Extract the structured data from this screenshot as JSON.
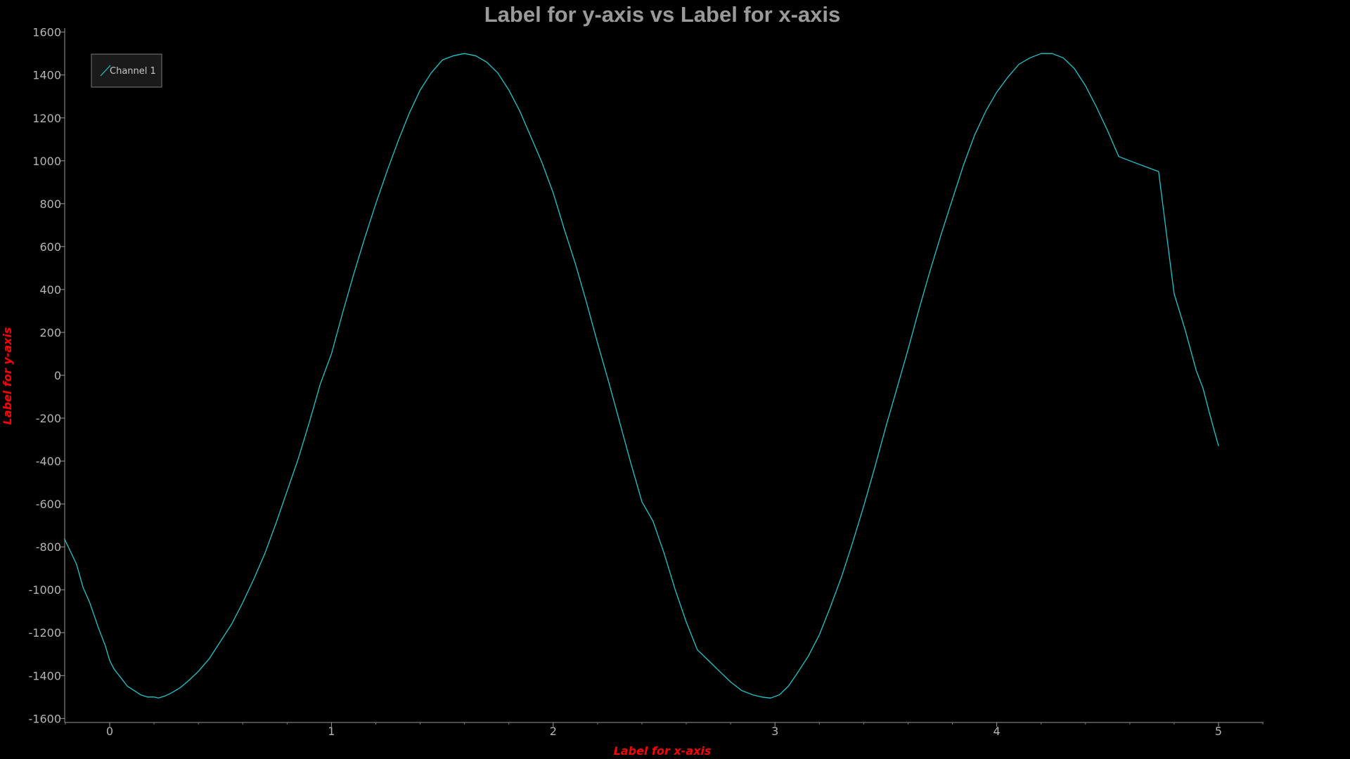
{
  "colors": {
    "background": "#000000",
    "axis": "#9a9a9a",
    "tick_text": "#b4b4b4",
    "title": "#9a9a9a",
    "axis_label": "#ff0000",
    "series": "#1fc6cc",
    "legend_border": "#7a7a7a",
    "legend_fill": "#1a1a1a"
  },
  "chart_data": {
    "type": "line",
    "title": "Label for y-axis vs Label for x-axis",
    "xlabel": "Label for x-axis",
    "ylabel": "Label for y-axis",
    "xlim": [
      -0.205,
      5.2
    ],
    "ylim": [
      -1620,
      1620
    ],
    "xticks": [
      0,
      1,
      2,
      3,
      4,
      5
    ],
    "xtick_labels": [
      "0",
      "1",
      "2",
      "3",
      "4",
      "5"
    ],
    "yticks": [
      1600,
      1400,
      1200,
      1000,
      800,
      600,
      400,
      200,
      0,
      -200,
      -400,
      -600,
      -800,
      -1000,
      -1200,
      -1400,
      -1600
    ],
    "ytick_labels": [
      "1600",
      "1400",
      "1200",
      "1000",
      "800",
      "600",
      "400",
      "200",
      "0",
      "-200",
      "-400",
      "-600",
      "-800",
      "-1000",
      "-1200",
      "-1400",
      "-1600"
    ],
    "grid": false,
    "legend_position": "top-left",
    "series": [
      {
        "name": "Channel 1",
        "color": "#1fc6cc",
        "x": [
          -0.205,
          -0.15,
          -0.12,
          -0.09,
          -0.05,
          -0.02,
          0.0,
          0.02,
          0.05,
          0.08,
          0.11,
          0.14,
          0.17,
          0.2,
          0.22,
          0.25,
          0.28,
          0.32,
          0.36,
          0.4,
          0.45,
          0.5,
          0.55,
          0.6,
          0.65,
          0.7,
          0.75,
          0.8,
          0.85,
          0.9,
          0.95,
          1.0,
          1.05,
          1.1,
          1.15,
          1.2,
          1.25,
          1.3,
          1.35,
          1.4,
          1.45,
          1.5,
          1.55,
          1.6,
          1.65,
          1.7,
          1.75,
          1.8,
          1.85,
          1.9,
          1.95,
          2.0,
          2.05,
          2.1,
          2.15,
          2.2,
          2.25,
          2.3,
          2.35,
          2.4,
          2.45,
          2.5,
          2.55,
          2.6,
          2.65,
          2.7,
          2.72,
          2.75,
          2.8,
          2.85,
          2.9,
          2.94,
          2.98,
          3.02,
          3.06,
          3.1,
          3.15,
          3.2,
          3.25,
          3.3,
          3.35,
          3.4,
          3.45,
          3.5,
          3.55,
          3.6,
          3.65,
          3.7,
          3.75,
          3.8,
          3.85,
          3.9,
          3.95,
          4.0,
          4.05,
          4.1,
          4.15,
          4.2,
          4.25,
          4.3,
          4.35,
          4.4,
          4.45,
          4.5,
          4.55,
          4.6,
          4.73,
          4.78,
          4.8,
          4.85,
          4.9,
          4.93,
          4.96,
          5.0
        ],
        "y": [
          -760,
          -880,
          -990,
          -1060,
          -1180,
          -1260,
          -1330,
          -1370,
          -1410,
          -1450,
          -1470,
          -1490,
          -1500,
          -1500,
          -1505,
          -1495,
          -1480,
          -1455,
          -1420,
          -1380,
          -1320,
          -1240,
          -1160,
          -1060,
          -950,
          -830,
          -690,
          -540,
          -390,
          -220,
          -40,
          100,
          290,
          470,
          640,
          800,
          950,
          1090,
          1220,
          1330,
          1410,
          1470,
          1490,
          1500,
          1490,
          1460,
          1410,
          1330,
          1230,
          1110,
          990,
          850,
          680,
          520,
          340,
          150,
          -30,
          -220,
          -410,
          -590,
          -680,
          -830,
          -1000,
          -1150,
          -1280,
          -1330,
          -1350,
          -1380,
          -1430,
          -1470,
          -1490,
          -1500,
          -1505,
          -1490,
          -1450,
          -1390,
          -1310,
          -1210,
          -1080,
          -940,
          -780,
          -610,
          -430,
          -240,
          -60,
          120,
          310,
          490,
          660,
          820,
          980,
          1120,
          1230,
          1320,
          1390,
          1450,
          1480,
          1500,
          1500,
          1480,
          1430,
          1350,
          1250,
          1140,
          1020,
          1000,
          950,
          540,
          380,
          210,
          20,
          -60,
          -180,
          -330
        ]
      }
    ]
  },
  "legend": {
    "items": [
      {
        "label": "Channel 1"
      }
    ]
  }
}
